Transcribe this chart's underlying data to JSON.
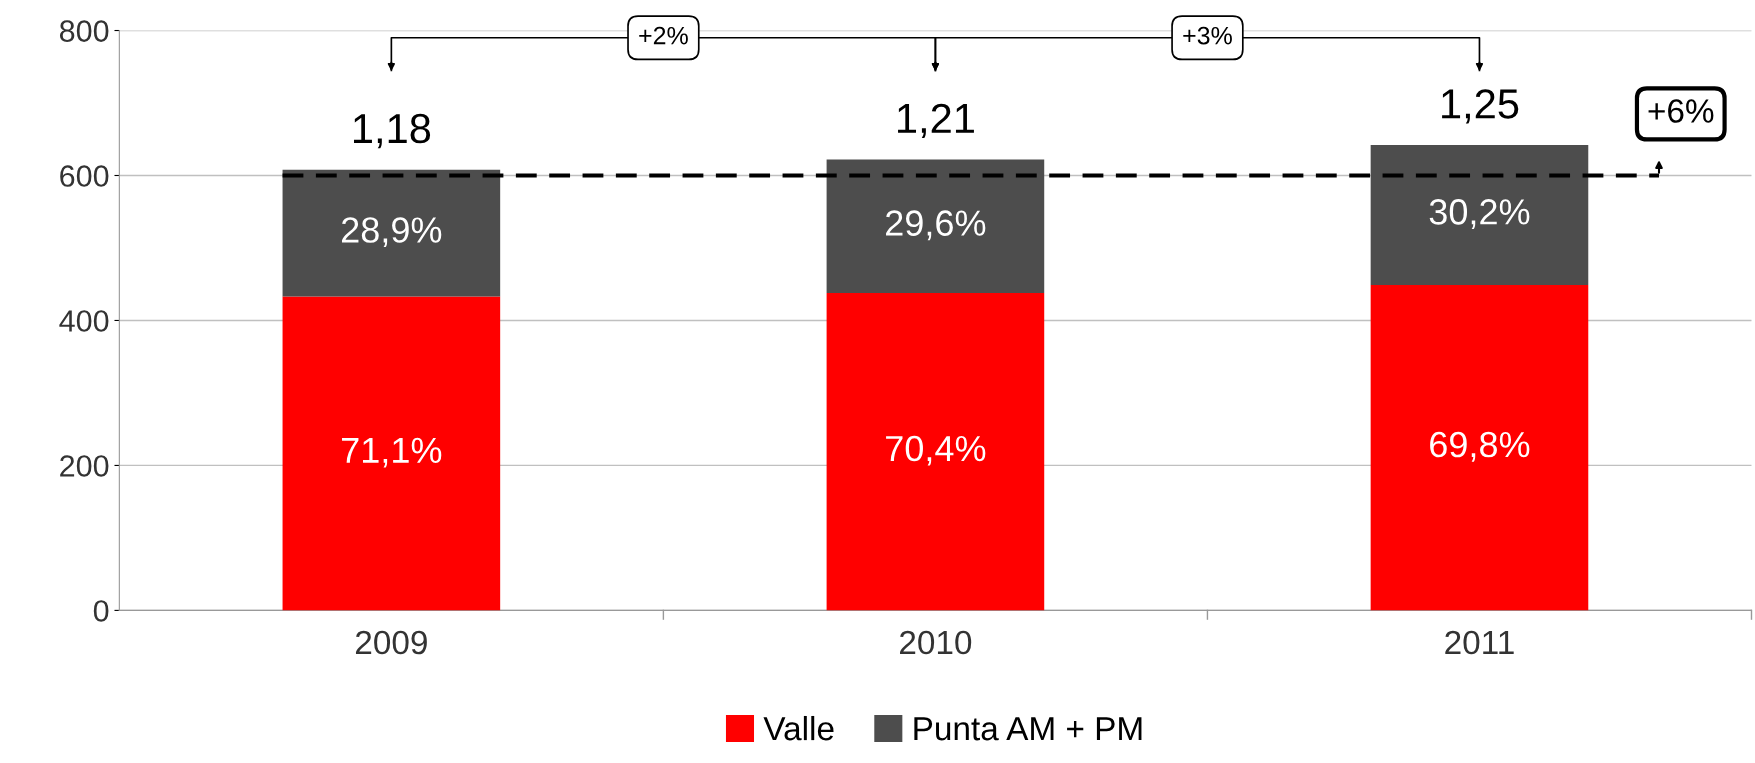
{
  "chart_data": {
    "type": "bar",
    "stacked": true,
    "categories": [
      "2009",
      "2010",
      "2011"
    ],
    "series": [
      {
        "name": "Valle",
        "color": "#ff0000",
        "values": [
          433,
          438,
          449
        ]
      },
      {
        "name": "Punta AM + PM",
        "color": "#4d4d4d",
        "values": [
          175,
          184,
          193
        ]
      }
    ],
    "ylim": [
      0,
      800
    ],
    "yticks": [
      0,
      200,
      400,
      600,
      800
    ],
    "grid": "y",
    "legend": "bottom",
    "ref_lines": [
      {
        "axis": "y",
        "value": 600,
        "color": "#000000",
        "line_style": "dashed"
      }
    ],
    "annotations": [
      "+2%",
      "+3%",
      "+6%",
      "71,1%",
      "70,4%",
      "69,8%",
      "28,9%",
      "29,6%",
      "30,2%",
      {
        "text": "1,18",
        "x": "2009",
        "y": 608
      },
      {
        "text": "1,21",
        "x": "2010",
        "y": 622
      },
      {
        "text": "1,25",
        "x": "2011",
        "y": 642
      }
    ]
  }
}
